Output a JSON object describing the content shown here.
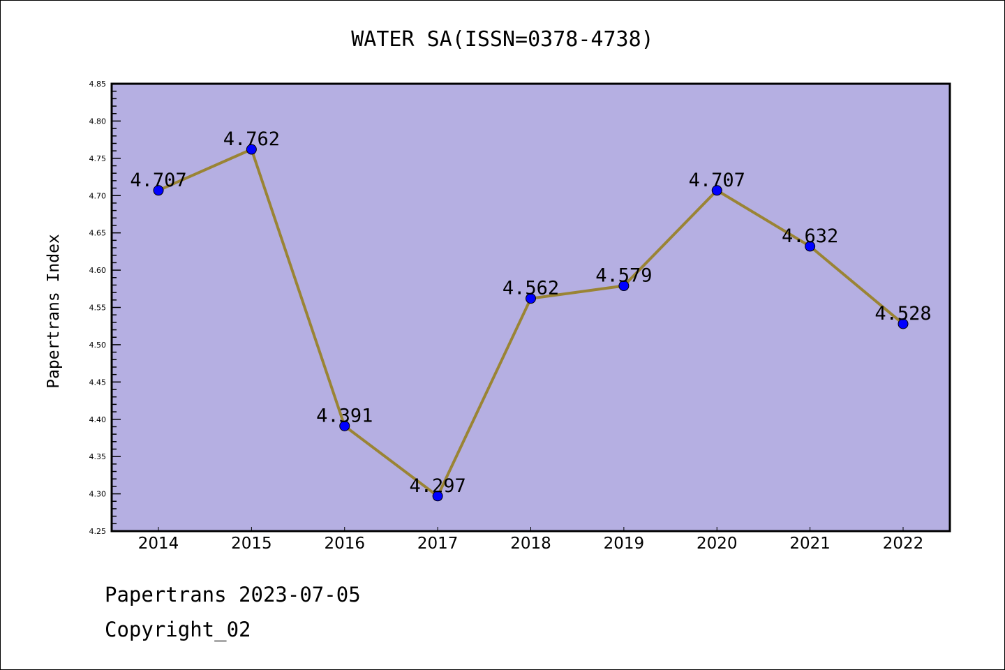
{
  "chart_data": {
    "type": "line",
    "title": "WATER SA(ISSN=0378-4738)",
    "xlabel": "",
    "ylabel": "Papertrans Index",
    "categories": [
      "2014",
      "2015",
      "2016",
      "2017",
      "2018",
      "2019",
      "2020",
      "2021",
      "2022"
    ],
    "series": [
      {
        "name": "Papertrans Index",
        "values": [
          4.707,
          4.762,
          4.391,
          4.297,
          4.562,
          4.579,
          4.707,
          4.632,
          4.528
        ]
      }
    ],
    "data_labels": [
      "4.707",
      "4.762",
      "4.391",
      "4.297",
      "4.562",
      "4.579",
      "4.707",
      "4.632",
      "4.528"
    ],
    "ylim": [
      4.25,
      4.85
    ],
    "yticks": [
      "4.25",
      "4.30",
      "4.35",
      "4.40",
      "4.45",
      "4.50",
      "4.55",
      "4.60",
      "4.65",
      "4.70",
      "4.75",
      "4.80",
      "4.85"
    ],
    "grid": false,
    "colors": {
      "background": "#b5afe2",
      "line": "#9a8434",
      "marker": "#0000ff"
    }
  },
  "footer": {
    "line1": "Papertrans 2023-07-05",
    "line2": "Copyright_02"
  }
}
